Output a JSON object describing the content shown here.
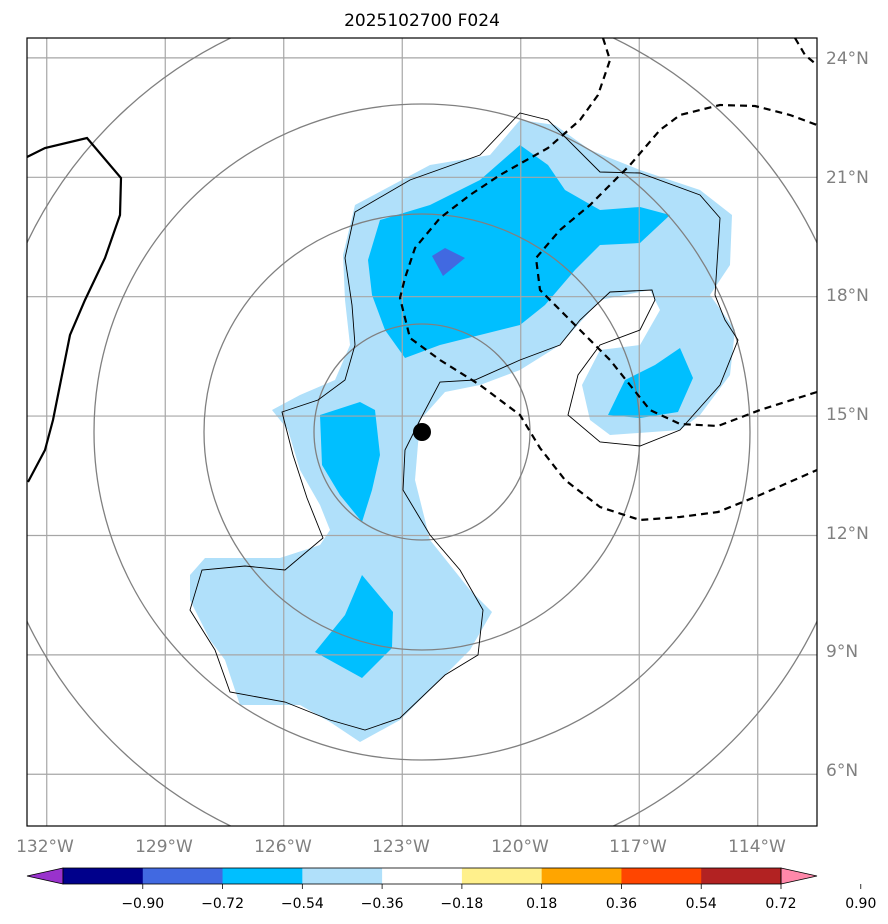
{
  "title": "2025102700 F024",
  "map": {
    "lon_ticks": [
      "132°W",
      "129°W",
      "126°W",
      "123°W",
      "120°W",
      "117°W",
      "114°W"
    ],
    "lat_ticks": [
      "24°N",
      "21°N",
      "18°N",
      "15°N",
      "12°N",
      "9°N",
      "6°N"
    ],
    "lon_values": [
      -132,
      -129,
      -126,
      -123,
      -120,
      -117,
      -114
    ],
    "lat_values": [
      24,
      21,
      18,
      15,
      12,
      9,
      6
    ],
    "extent": {
      "lon_min": -132.5,
      "lon_max": -112.5,
      "lat_min": 4.7,
      "lat_max": 24.5
    },
    "storm_center": {
      "lon": -122.5,
      "lat": 14.6
    }
  },
  "colorbar": {
    "levels": [
      "−0.90",
      "−0.72",
      "−0.54",
      "−0.36",
      "−0.18",
      "0.18",
      "0.36",
      "0.54",
      "0.72",
      "0.90"
    ],
    "colors": [
      "#9932cc",
      "#00008b",
      "#4169e1",
      "#00bfff",
      "#b0e0fa",
      "#ffffff",
      "#fff08c",
      "#ffa500",
      "#ff4500",
      "#b22222",
      "#ff88aa"
    ]
  }
}
